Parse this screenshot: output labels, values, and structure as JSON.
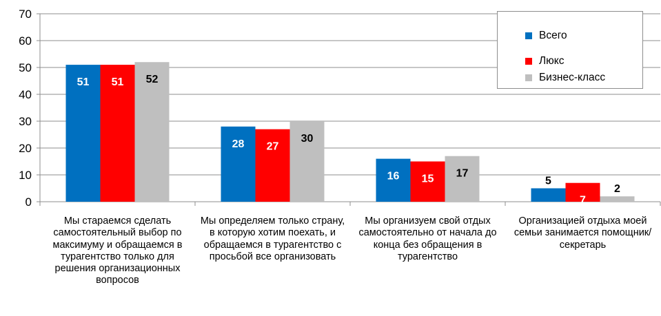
{
  "chart_data": {
    "type": "bar",
    "title": "",
    "xlabel": "",
    "ylabel": "",
    "ylim": [
      0,
      70
    ],
    "yticks": [
      0,
      10,
      20,
      30,
      40,
      50,
      60,
      70
    ],
    "grid": true,
    "legend_position": "top-right",
    "categories": [
      "Мы стараемся сделать самостоятельный выбор по максимуму и обращаемся в турагентство только для решения организационных вопросов",
      "Мы определяем только страну, в которую хотим поехать, и обращаемся в турагентство с просьбой все организовать",
      "Мы организуем свой отдых самостоятельно от начала до конца без обращения в турагентство",
      "Организацией отдыха моей семьи занимается  помощник/ секретарь"
    ],
    "series": [
      {
        "name": "Всего",
        "color": "#0070c0",
        "values": [
          51,
          28,
          16,
          5
        ]
      },
      {
        "name": "Люкс",
        "color": "#ff0000",
        "values": [
          51,
          27,
          15,
          7
        ]
      },
      {
        "name": "Бизнес-класс",
        "color": "#bfbfbf",
        "values": [
          52,
          30,
          17,
          2
        ]
      }
    ]
  },
  "category_label_lines": [
    "Мы стараемся сделать\nсамостоятельный выбор по\nмаксимуму и обращаемся в\nтурагентство только для\nрешения организационных\nвопросов",
    "Мы определяем только страну,\nв которую хотим поехать, и\nобращаемся в турагентство с\nпросьбой все организовать",
    "Мы организуем свой отдых\nсамостоятельно от начала до\nконца без обращения в\nтурагентство",
    "Организацией отдыха моей\nсемьи занимается  помощник/\nсекретарь"
  ]
}
